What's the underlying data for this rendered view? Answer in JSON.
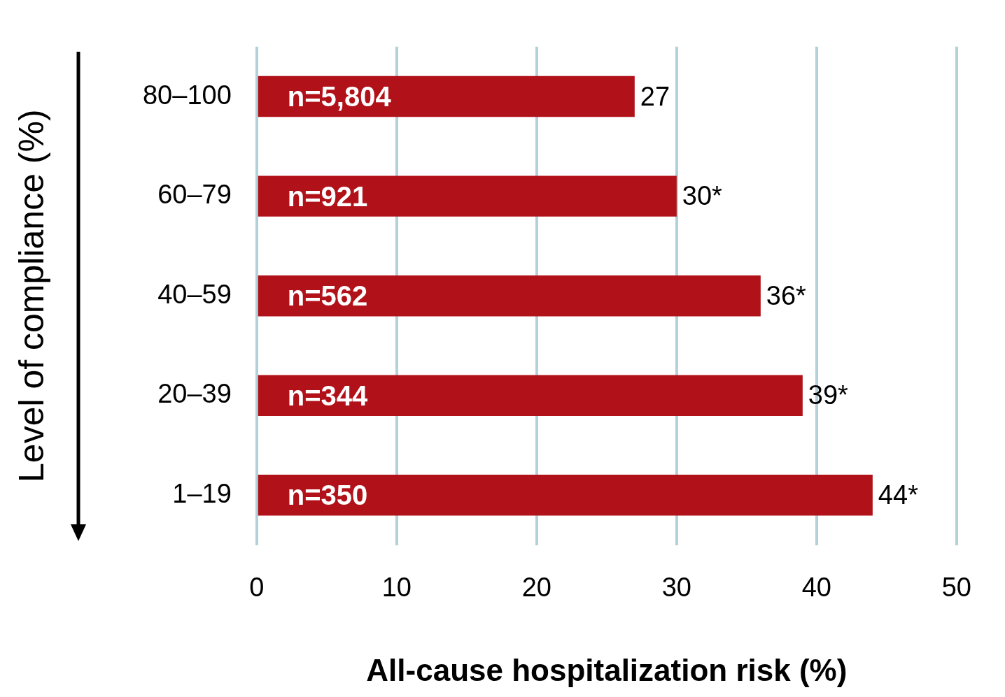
{
  "chart_data": {
    "type": "bar",
    "orientation": "horizontal",
    "xlabel": "All-cause hospitalization risk (%)",
    "ylabel": "Level of compliance (%)",
    "categories": [
      "80–100",
      "60–79",
      "40–59",
      "20–39",
      "1–19"
    ],
    "values": [
      27,
      30,
      36,
      39,
      44
    ],
    "value_labels": [
      "27",
      "30*",
      "36*",
      "39*",
      "44*"
    ],
    "color": "#b11118",
    "xlim": [
      0,
      50
    ],
    "xticks": [
      0,
      10,
      20,
      30,
      40,
      50
    ],
    "grid": "x",
    "legend": false,
    "annotations": [
      "n=5,804",
      "n=921",
      "n=562",
      "n=344",
      "n=350"
    ]
  }
}
